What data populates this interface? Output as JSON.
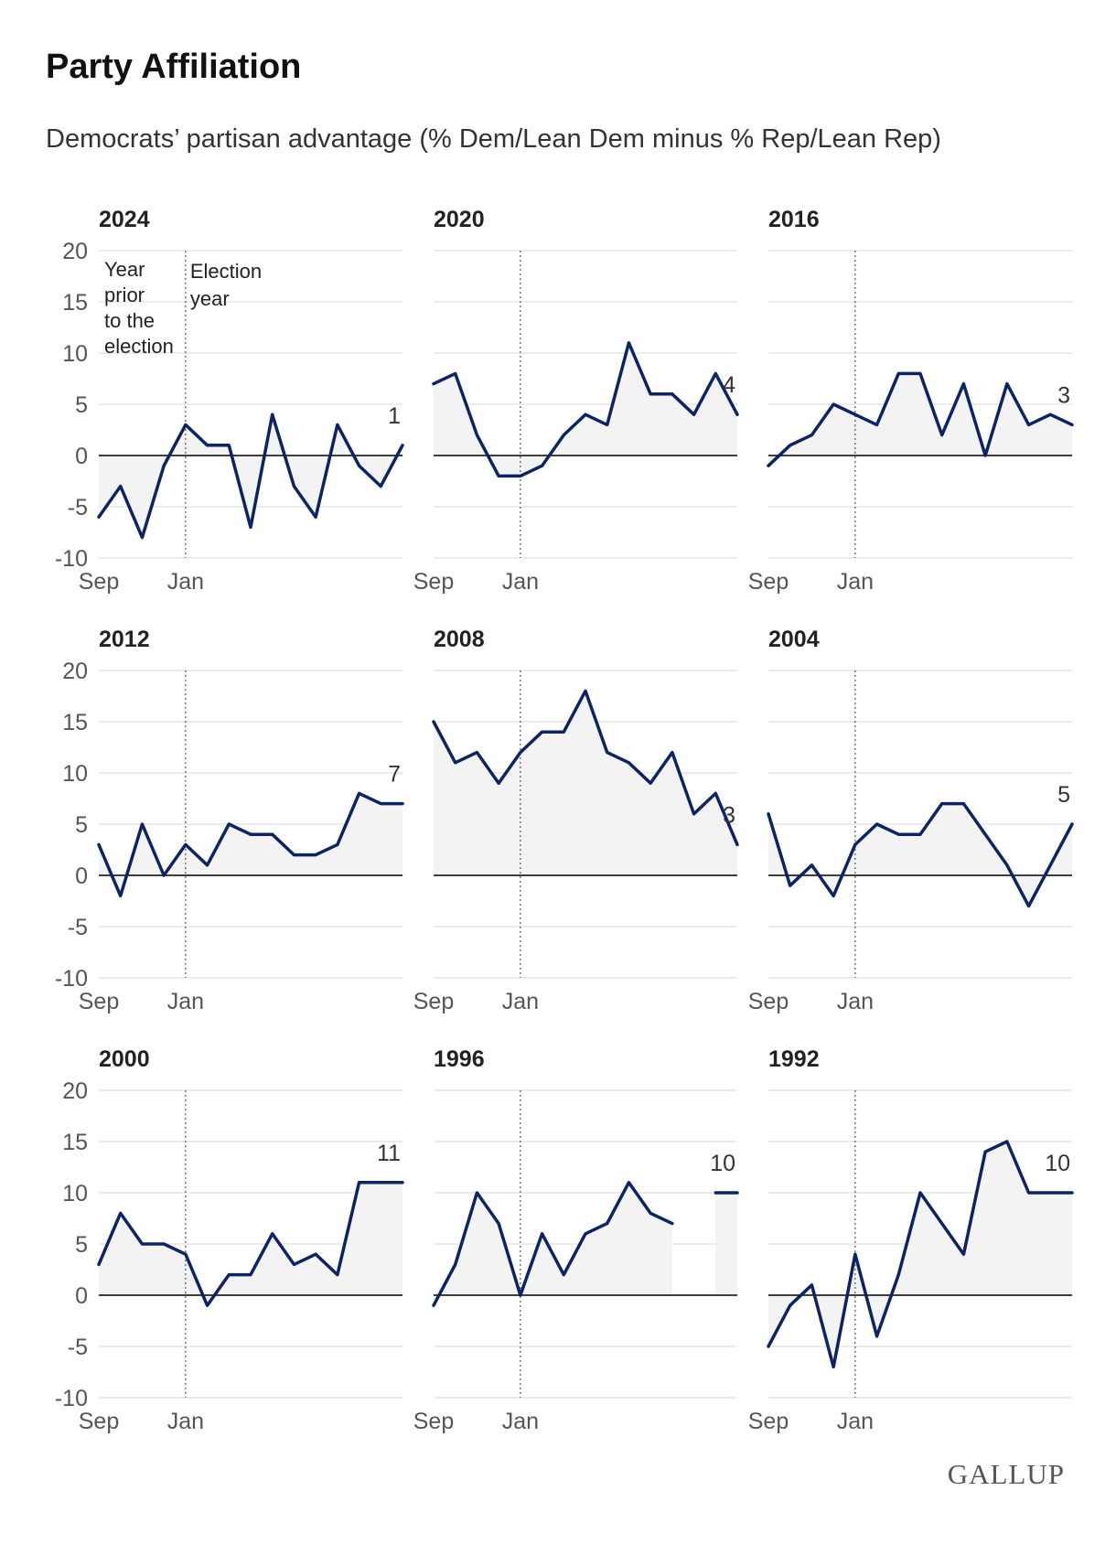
{
  "title": "Party Affiliation",
  "subtitle": "Democrats’ partisan advantage (% Dem/Lean Dem minus % Rep/Lean Rep)",
  "logo_text": "GALLUP",
  "colors": {
    "line": "#0c2366",
    "fill": "#f3f3f3",
    "grid": "#d9d9d9",
    "zero": "#000000"
  },
  "chart_data": [
    {
      "type": "line",
      "title": "2024",
      "x_ticks": [
        "Sep",
        "Jan"
      ],
      "ylim": [
        -10,
        20
      ],
      "yticks": [
        -10,
        -5,
        0,
        5,
        10,
        15,
        20
      ],
      "annotations": [
        "Year",
        "prior",
        "to the",
        "election",
        "Election",
        "year"
      ],
      "values": [
        -6,
        -3,
        -8,
        -1,
        3,
        1,
        1,
        -7,
        4,
        -3,
        -6,
        3,
        -1,
        -3,
        1
      ],
      "end_label": "1"
    },
    {
      "type": "line",
      "title": "2020",
      "x_ticks": [
        "Sep",
        "Jan"
      ],
      "ylim": [
        -10,
        20
      ],
      "values": [
        7,
        8,
        2,
        -2,
        -2,
        -1,
        2,
        4,
        3,
        11,
        6,
        6,
        4,
        8,
        4
      ],
      "end_label": "4"
    },
    {
      "type": "line",
      "title": "2016",
      "x_ticks": [
        "Sep",
        "Jan"
      ],
      "ylim": [
        -10,
        20
      ],
      "values": [
        -1,
        1,
        2,
        5,
        4,
        3,
        8,
        8,
        2,
        7,
        0,
        7,
        3,
        4,
        3
      ],
      "end_label": "3"
    },
    {
      "type": "line",
      "title": "2012",
      "x_ticks": [
        "Sep",
        "Jan"
      ],
      "ylim": [
        -10,
        20
      ],
      "yticks": [
        -10,
        -5,
        0,
        5,
        10,
        15,
        20
      ],
      "values": [
        3,
        -2,
        5,
        0,
        3,
        1,
        5,
        4,
        4,
        2,
        2,
        3,
        8,
        7,
        7
      ],
      "end_label": "7"
    },
    {
      "type": "line",
      "title": "2008",
      "x_ticks": [
        "Sep",
        "Jan"
      ],
      "ylim": [
        -10,
        20
      ],
      "values": [
        15,
        11,
        12,
        9,
        12,
        14,
        14,
        18,
        12,
        11,
        9,
        12,
        6,
        8,
        3
      ],
      "end_label": "3"
    },
    {
      "type": "line",
      "title": "2004",
      "x_ticks": [
        "Sep",
        "Jan"
      ],
      "ylim": [
        -10,
        20
      ],
      "values": [
        6,
        -1,
        1,
        -2,
        3,
        5,
        4,
        4,
        7,
        7,
        4,
        1,
        -3,
        1,
        5
      ],
      "end_label": "5"
    },
    {
      "type": "line",
      "title": "2000",
      "x_ticks": [
        "Sep",
        "Jan"
      ],
      "ylim": [
        -10,
        20
      ],
      "yticks": [
        -10,
        -5,
        0,
        5,
        10,
        15,
        20
      ],
      "values": [
        3,
        8,
        5,
        5,
        4,
        -1,
        2,
        2,
        6,
        3,
        4,
        2,
        11,
        11,
        11
      ],
      "end_label": "11"
    },
    {
      "type": "line",
      "title": "1996",
      "x_ticks": [
        "Sep",
        "Jan"
      ],
      "ylim": [
        -10,
        20
      ],
      "values": [
        -1,
        3,
        10,
        7,
        0,
        6,
        2,
        6,
        7,
        11,
        8,
        7,
        null,
        10,
        10
      ],
      "end_label": "10"
    },
    {
      "type": "line",
      "title": "1992",
      "x_ticks": [
        "Sep",
        "Jan"
      ],
      "ylim": [
        -10,
        20
      ],
      "values": [
        -5,
        -1,
        1,
        -7,
        4,
        -4,
        2,
        10,
        7,
        4,
        14,
        15,
        10,
        10,
        10
      ],
      "end_label": "10"
    }
  ]
}
